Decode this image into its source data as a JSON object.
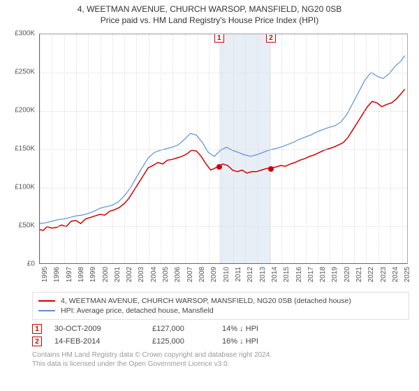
{
  "title_line1": "4, WEETMAN AVENUE, CHURCH WARSOP, MANSFIELD, NG20 0SB",
  "title_line2": "Price paid vs. HM Land Registry's House Price Index (HPI)",
  "chart": {
    "type": "line",
    "xlim": [
      1995,
      2025.5
    ],
    "ylim": [
      0,
      300000
    ],
    "ytick_step": 50000,
    "ytick_prefix": "£",
    "ytick_suffix": "K",
    "yticks": [
      0,
      50000,
      100000,
      150000,
      200000,
      250000,
      300000
    ],
    "ytick_labels": [
      "£0",
      "£50K",
      "£100K",
      "£150K",
      "£200K",
      "£250K",
      "£300K"
    ],
    "years": [
      1995,
      1996,
      1997,
      1998,
      1999,
      2000,
      2001,
      2002,
      2003,
      2004,
      2005,
      2006,
      2007,
      2008,
      2009,
      2010,
      2011,
      2012,
      2013,
      2014,
      2015,
      2016,
      2017,
      2018,
      2019,
      2020,
      2021,
      2022,
      2023,
      2024,
      2025
    ],
    "shaded_band": {
      "start": 2009.83,
      "end": 2014.12,
      "color": "#e8eef6"
    },
    "grid_color": "#dddddd",
    "background_color": "#ffffff",
    "axis_color": "#666666",
    "series": [
      {
        "id": "price_paid",
        "label": "4, WEETMAN AVENUE, CHURCH WARSOP, MANSFIELD, NG20 0SB (detached house)",
        "color": "#cc0000",
        "stroke_width": 1.5,
        "points": [
          [
            1995,
            44000
          ],
          [
            1995.3,
            43000
          ],
          [
            1995.6,
            48000
          ],
          [
            1996,
            46000
          ],
          [
            1996.4,
            47000
          ],
          [
            1996.8,
            50000
          ],
          [
            1997.2,
            48000
          ],
          [
            1997.6,
            55000
          ],
          [
            1998,
            56000
          ],
          [
            1998.4,
            52000
          ],
          [
            1998.8,
            58000
          ],
          [
            1999.2,
            60000
          ],
          [
            1999.6,
            62000
          ],
          [
            2000,
            64000
          ],
          [
            2000.4,
            63000
          ],
          [
            2000.8,
            68000
          ],
          [
            2001.2,
            70000
          ],
          [
            2001.6,
            73000
          ],
          [
            2002,
            78000
          ],
          [
            2002.4,
            85000
          ],
          [
            2002.8,
            95000
          ],
          [
            2003.2,
            105000
          ],
          [
            2003.6,
            115000
          ],
          [
            2004,
            125000
          ],
          [
            2004.4,
            128000
          ],
          [
            2004.8,
            132000
          ],
          [
            2005.2,
            130000
          ],
          [
            2005.6,
            135000
          ],
          [
            2006,
            136000
          ],
          [
            2006.4,
            138000
          ],
          [
            2006.8,
            140000
          ],
          [
            2007.2,
            143000
          ],
          [
            2007.6,
            148000
          ],
          [
            2008,
            147000
          ],
          [
            2008.4,
            140000
          ],
          [
            2008.8,
            130000
          ],
          [
            2009.2,
            122000
          ],
          [
            2009.6,
            125000
          ],
          [
            2009.83,
            127000
          ],
          [
            2010.2,
            130000
          ],
          [
            2010.6,
            128000
          ],
          [
            2011,
            122000
          ],
          [
            2011.4,
            120000
          ],
          [
            2011.8,
            122000
          ],
          [
            2012.2,
            118000
          ],
          [
            2012.6,
            120000
          ],
          [
            2013,
            120000
          ],
          [
            2013.4,
            122000
          ],
          [
            2013.8,
            124000
          ],
          [
            2014.12,
            125000
          ],
          [
            2014.6,
            126000
          ],
          [
            2015,
            128000
          ],
          [
            2015.4,
            127000
          ],
          [
            2015.8,
            130000
          ],
          [
            2016.2,
            132000
          ],
          [
            2016.6,
            135000
          ],
          [
            2017,
            137000
          ],
          [
            2017.4,
            140000
          ],
          [
            2017.8,
            142000
          ],
          [
            2018.2,
            145000
          ],
          [
            2018.6,
            148000
          ],
          [
            2019,
            150000
          ],
          [
            2019.4,
            152000
          ],
          [
            2019.8,
            155000
          ],
          [
            2020.2,
            158000
          ],
          [
            2020.6,
            165000
          ],
          [
            2021,
            175000
          ],
          [
            2021.4,
            185000
          ],
          [
            2021.8,
            195000
          ],
          [
            2022.2,
            205000
          ],
          [
            2022.6,
            212000
          ],
          [
            2023,
            210000
          ],
          [
            2023.4,
            205000
          ],
          [
            2023.8,
            208000
          ],
          [
            2024.2,
            210000
          ],
          [
            2024.6,
            215000
          ],
          [
            2025,
            222000
          ],
          [
            2025.3,
            228000
          ]
        ]
      },
      {
        "id": "hpi",
        "label": "HPI: Average price, detached house, Mansfield",
        "color": "#5b8fd6",
        "stroke_width": 1.2,
        "points": [
          [
            1995,
            52000
          ],
          [
            1995.5,
            53000
          ],
          [
            1996,
            55000
          ],
          [
            1996.5,
            57000
          ],
          [
            1997,
            58000
          ],
          [
            1997.5,
            60000
          ],
          [
            1998,
            62000
          ],
          [
            1998.5,
            63000
          ],
          [
            1999,
            65000
          ],
          [
            1999.5,
            68000
          ],
          [
            2000,
            72000
          ],
          [
            2000.5,
            74000
          ],
          [
            2001,
            76000
          ],
          [
            2001.5,
            80000
          ],
          [
            2002,
            88000
          ],
          [
            2002.5,
            98000
          ],
          [
            2003,
            112000
          ],
          [
            2003.5,
            125000
          ],
          [
            2004,
            138000
          ],
          [
            2004.5,
            145000
          ],
          [
            2005,
            148000
          ],
          [
            2005.5,
            150000
          ],
          [
            2006,
            152000
          ],
          [
            2006.5,
            155000
          ],
          [
            2007,
            162000
          ],
          [
            2007.5,
            170000
          ],
          [
            2008,
            168000
          ],
          [
            2008.5,
            158000
          ],
          [
            2009,
            145000
          ],
          [
            2009.5,
            140000
          ],
          [
            2010,
            148000
          ],
          [
            2010.5,
            152000
          ],
          [
            2011,
            148000
          ],
          [
            2011.5,
            145000
          ],
          [
            2012,
            142000
          ],
          [
            2012.5,
            140000
          ],
          [
            2013,
            142000
          ],
          [
            2013.5,
            145000
          ],
          [
            2014,
            148000
          ],
          [
            2014.5,
            150000
          ],
          [
            2015,
            152000
          ],
          [
            2015.5,
            155000
          ],
          [
            2016,
            158000
          ],
          [
            2016.5,
            162000
          ],
          [
            2017,
            165000
          ],
          [
            2017.5,
            168000
          ],
          [
            2018,
            172000
          ],
          [
            2018.5,
            175000
          ],
          [
            2019,
            178000
          ],
          [
            2019.5,
            180000
          ],
          [
            2020,
            185000
          ],
          [
            2020.5,
            195000
          ],
          [
            2021,
            210000
          ],
          [
            2021.5,
            225000
          ],
          [
            2022,
            240000
          ],
          [
            2022.5,
            250000
          ],
          [
            2023,
            245000
          ],
          [
            2023.5,
            242000
          ],
          [
            2024,
            248000
          ],
          [
            2024.5,
            258000
          ],
          [
            2025,
            265000
          ],
          [
            2025.3,
            272000
          ]
        ]
      }
    ],
    "sale_markers": [
      {
        "n": "1",
        "date_decimal": 2009.83,
        "price": 127000
      },
      {
        "n": "2",
        "date_decimal": 2014.12,
        "price": 125000
      }
    ]
  },
  "legend": [
    {
      "color": "#cc0000",
      "label": "4, WEETMAN AVENUE, CHURCH WARSOP, MANSFIELD, NG20 0SB (detached house)"
    },
    {
      "color": "#5b8fd6",
      "label": "HPI: Average price, detached house, Mansfield"
    }
  ],
  "sales": [
    {
      "n": "1",
      "date": "30-OCT-2009",
      "price": "£127,000",
      "hpi_delta": "14% ↓ HPI"
    },
    {
      "n": "2",
      "date": "14-FEB-2014",
      "price": "£125,000",
      "hpi_delta": "16% ↓ HPI"
    }
  ],
  "footer_line1": "Contains HM Land Registry data © Crown copyright and database right 2024.",
  "footer_line2": "This data is licensed under the Open Government Licence v3.0."
}
